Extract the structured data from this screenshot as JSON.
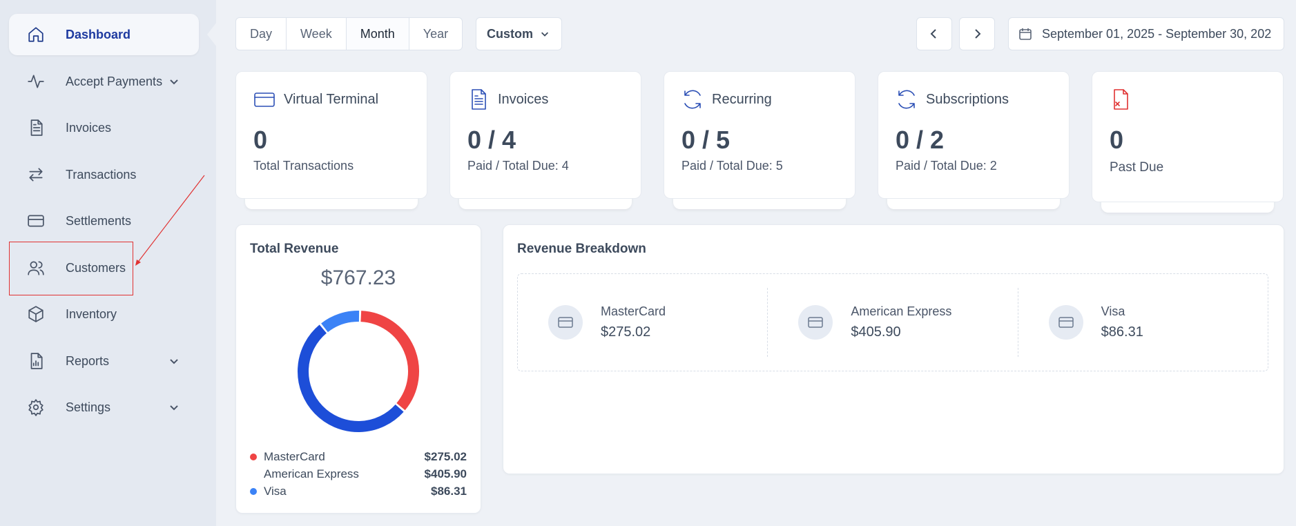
{
  "sidebar": {
    "items": [
      {
        "label": "Dashboard",
        "icon": "home-icon",
        "active": true
      },
      {
        "label": "Accept Payments",
        "icon": "pulse-icon",
        "expandable": true
      },
      {
        "label": "Invoices",
        "icon": "document-icon"
      },
      {
        "label": "Transactions",
        "icon": "transfer-icon"
      },
      {
        "label": "Settlements",
        "icon": "card-icon"
      },
      {
        "label": "Customers",
        "icon": "users-icon"
      },
      {
        "label": "Inventory",
        "icon": "box-icon"
      },
      {
        "label": "Reports",
        "icon": "report-icon",
        "expandable": true
      },
      {
        "label": "Settings",
        "icon": "gear-icon",
        "expandable": true
      }
    ]
  },
  "toolbar": {
    "periods": [
      "Day",
      "Week",
      "Month",
      "Year"
    ],
    "selected_period": "Month",
    "custom_label": "Custom",
    "date_range": "September 01, 2025 - September 30, 202"
  },
  "stats": [
    {
      "title": "Virtual Terminal",
      "value": "0",
      "sub": "Total Transactions",
      "icon": "credit-card-icon"
    },
    {
      "title": "Invoices",
      "value": "0 / 4",
      "sub": "Paid / Total Due: 4",
      "icon": "invoice-icon"
    },
    {
      "title": "Recurring",
      "value": "0 / 5",
      "sub": "Paid / Total Due: 5",
      "icon": "refresh-icon"
    },
    {
      "title": "Subscriptions",
      "value": "0 / 2",
      "sub": "Paid / Total Due: 2",
      "icon": "refresh-icon"
    },
    {
      "title": "",
      "value": "0",
      "sub": "Past Due",
      "icon": "file-x-icon"
    }
  ],
  "total_revenue": {
    "title": "Total Revenue",
    "amount": "$767.23",
    "legend": [
      {
        "name": "MasterCard",
        "value": "$275.02",
        "color": "#ef4444",
        "amount": 275.02
      },
      {
        "name": "American Express",
        "value": "$405.90",
        "color": "#1d4ed8",
        "amount": 405.9
      },
      {
        "name": "Visa",
        "value": "$86.31",
        "color": "#3b82f6",
        "amount": 86.31
      }
    ]
  },
  "breakdown": {
    "title": "Revenue Breakdown",
    "items": [
      {
        "name": "MasterCard",
        "value": "$275.02"
      },
      {
        "name": "American Express",
        "value": "$405.90"
      },
      {
        "name": "Visa",
        "value": "$86.31"
      }
    ]
  },
  "colors": {
    "accent": "#1e3aa0",
    "danger": "#e03131",
    "sidebar_bg": "#e4e9f1",
    "page_bg": "#eef1f6"
  }
}
